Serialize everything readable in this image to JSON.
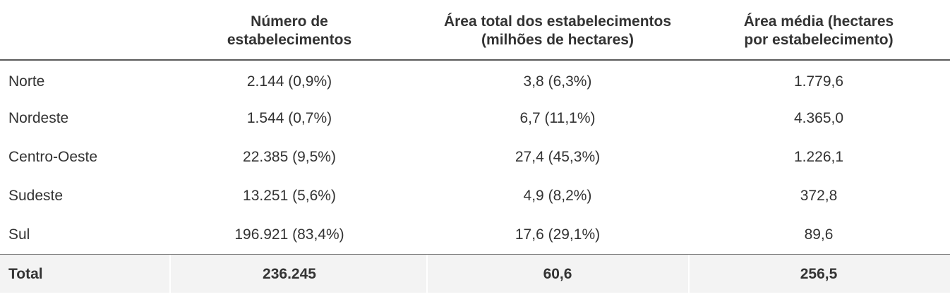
{
  "table": {
    "headers": [
      [
        "Número de",
        "estabelecimentos"
      ],
      [
        "Área total dos estabelecimentos",
        "(milhões de hectares)"
      ],
      [
        "Área média (hectares",
        "por estabelecimento)"
      ]
    ],
    "rows": [
      {
        "region": "Norte",
        "count": "2.144 (0,9%)",
        "area": "3,8 (6,3%)",
        "avg": "1.779,6"
      },
      {
        "region": "Nordeste",
        "count": "1.544 (0,7%)",
        "area": "6,7 (11,1%)",
        "avg": "4.365,0"
      },
      {
        "region": "Centro-Oeste",
        "count": "22.385 (9,5%)",
        "area": "27,4 (45,3%)",
        "avg": "1.226,1"
      },
      {
        "region": "Sudeste",
        "count": "13.251 (5,6%)",
        "area": "4,9 (8,2%)",
        "avg": "372,8"
      },
      {
        "region": "Sul",
        "count": "196.921 (83,4%)",
        "area": "17,6 (29,1%)",
        "avg": "89,6"
      }
    ],
    "total": {
      "label": "Total",
      "count": "236.245",
      "area": "60,6",
      "avg": "256,5"
    }
  },
  "colors": {
    "text": "#333333",
    "total_bg": "#f3f3f3",
    "rule": "#5a5a5a"
  }
}
